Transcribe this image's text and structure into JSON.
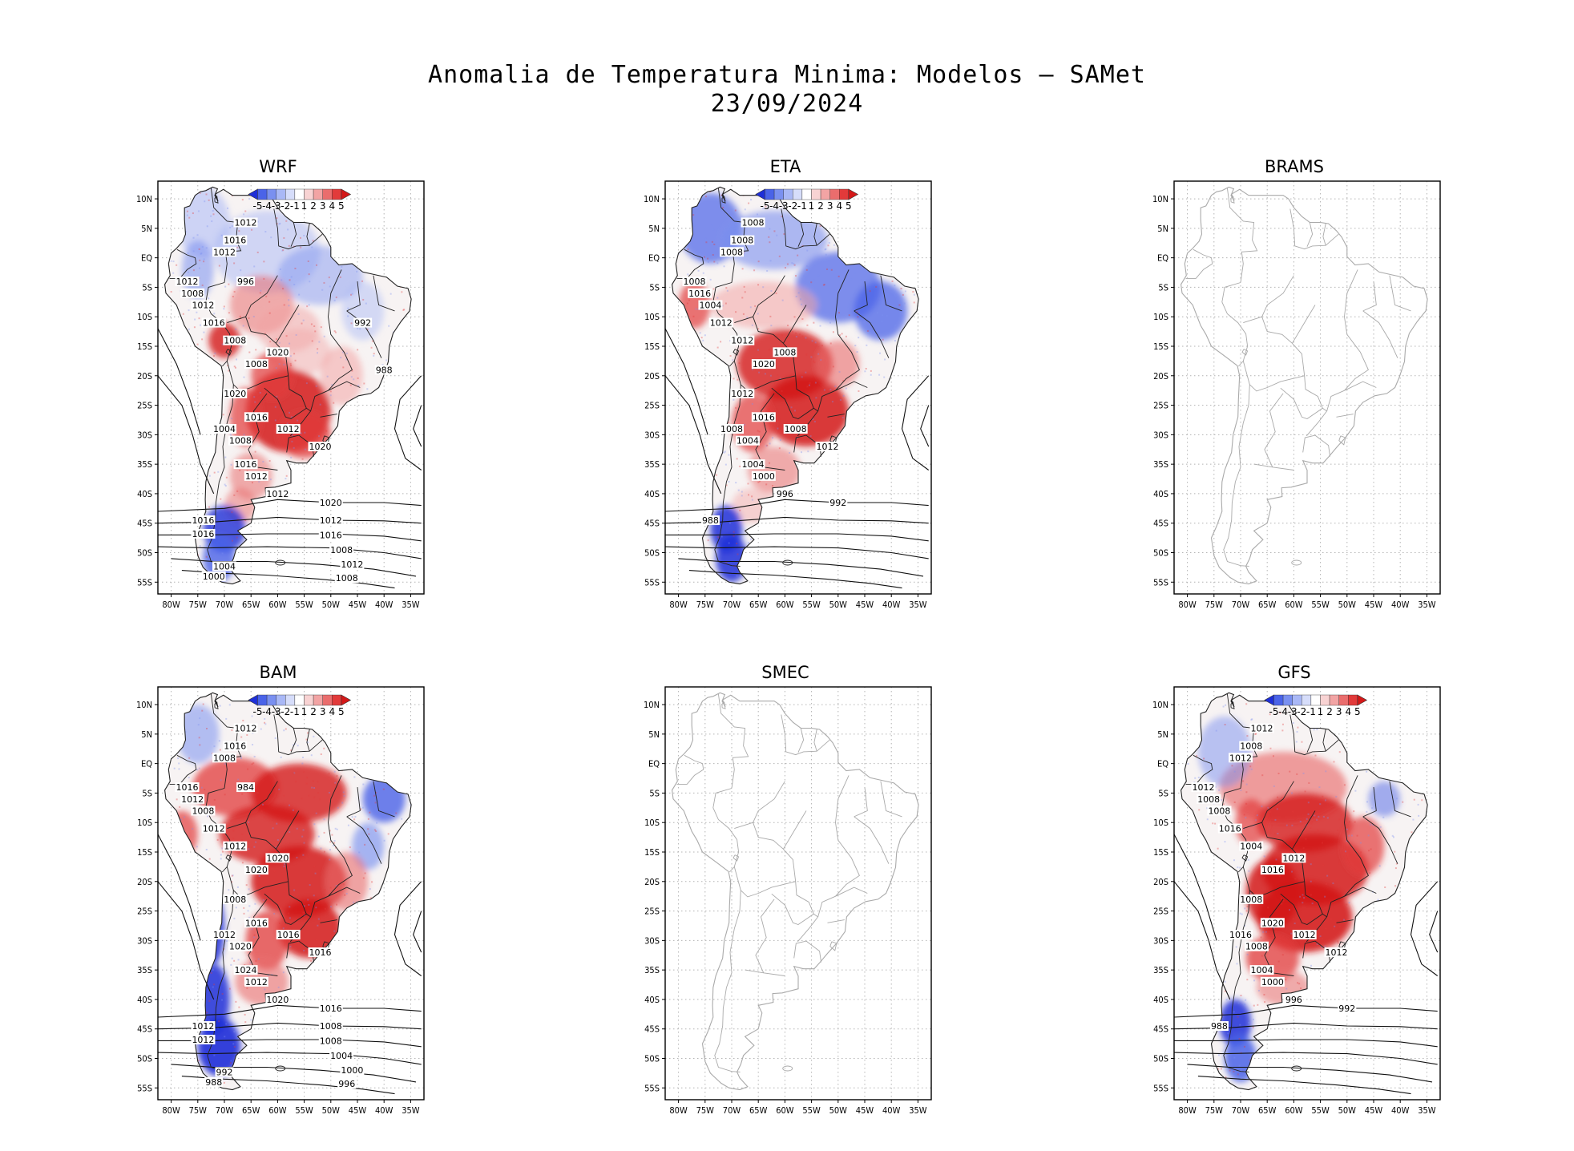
{
  "title": {
    "line1": "Anomalia de Temperatura Minima: Modelos — SAMet",
    "line2": "23/09/2024"
  },
  "axes": {
    "lat_labels": [
      "10N",
      "5N",
      "EQ",
      "5S",
      "10S",
      "15S",
      "20S",
      "25S",
      "30S",
      "35S",
      "40S",
      "45S",
      "50S",
      "55S"
    ],
    "lon_labels": [
      "80W",
      "75W",
      "70W",
      "65W",
      "60W",
      "55W",
      "50W",
      "45W",
      "40W",
      "35W"
    ]
  },
  "colorbar": {
    "labels": [
      "-5",
      "-4",
      "-3",
      "-2",
      "-1",
      "1",
      "2",
      "3",
      "4",
      "5"
    ],
    "colors": [
      "#1e2fd8",
      "#4a63e8",
      "#7a90f0",
      "#a9b8f6",
      "#d6ddfa",
      "#ffffff",
      "#f8d3d3",
      "#f2a4a4",
      "#ea6d6d",
      "#e23a3a",
      "#d41818"
    ]
  },
  "colors": {
    "warm": "#e8322e",
    "cold": "#2b3ee0",
    "land_outline": "#222222",
    "empty_outline": "#aaaaaa",
    "grid": "#b4b4b4"
  },
  "panels": [
    {
      "name": "WRF",
      "has_data": true,
      "pattern": "wrf",
      "isobars": [
        "1012",
        "1016",
        "1012",
        "1012",
        "1008",
        "1012",
        "1016",
        "1008",
        "1020",
        "1008",
        "1020",
        "1016",
        "1012",
        "1020",
        "1004",
        "1008",
        "1016",
        "1012",
        "1012",
        "1020",
        "1016",
        "1016",
        "1012",
        "1016",
        "1008",
        "1012",
        "1008",
        "1004",
        "1000",
        "996",
        "992",
        "988"
      ]
    },
    {
      "name": "ETA",
      "has_data": true,
      "pattern": "eta",
      "isobars": [
        "1008",
        "1008",
        "1008",
        "1008",
        "1016",
        "1004",
        "1012",
        "1012",
        "1008",
        "1020",
        "1012",
        "1016",
        "1008",
        "1012",
        "1008",
        "1004",
        "1004",
        "1000",
        "996",
        "992",
        "988"
      ]
    },
    {
      "name": "BRAMS",
      "has_data": false,
      "pattern": "none",
      "isobars": []
    },
    {
      "name": "BAM",
      "has_data": true,
      "pattern": "bam",
      "isobars": [
        "1012",
        "1016",
        "1008",
        "1016",
        "1012",
        "1008",
        "1012",
        "1012",
        "1020",
        "1020",
        "1008",
        "1016",
        "1016",
        "1016",
        "1012",
        "1020",
        "1024",
        "1012",
        "1020",
        "1016",
        "1012",
        "1012",
        "1008",
        "1008",
        "1004",
        "1000",
        "996",
        "992",
        "988",
        "984"
      ]
    },
    {
      "name": "SMEC",
      "has_data": false,
      "pattern": "none",
      "isobars": []
    },
    {
      "name": "GFS",
      "has_data": true,
      "pattern": "gfs",
      "isobars": [
        "1012",
        "1008",
        "1012",
        "1012",
        "1008",
        "1008",
        "1016",
        "1004",
        "1012",
        "1016",
        "1008",
        "1020",
        "1012",
        "1012",
        "1016",
        "1008",
        "1004",
        "1000",
        "996",
        "992",
        "988"
      ]
    }
  ]
}
